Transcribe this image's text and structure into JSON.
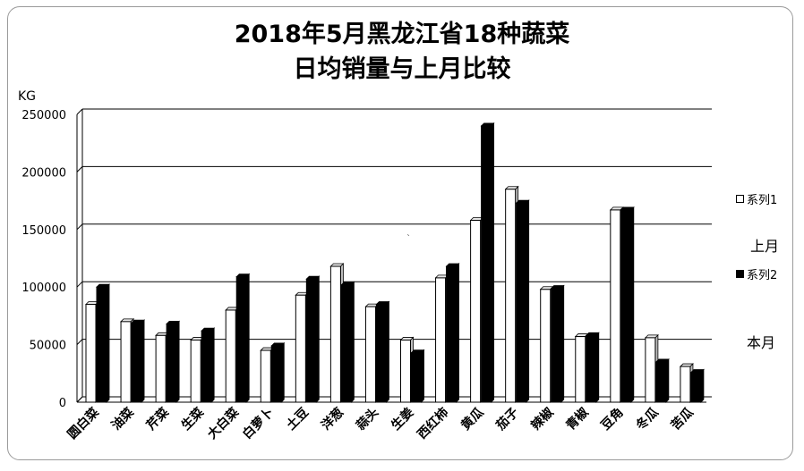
{
  "chart_data": {
    "type": "bar",
    "title_line1": "2018年5月黑龙江省18种蔬菜",
    "title_line2": "日均销量与上月比较",
    "ylabel": "KG",
    "ylim": [
      0,
      250000
    ],
    "yticks": [
      "0",
      "50000",
      "100000",
      "150000",
      "200000",
      "250000"
    ],
    "grid": true,
    "legend_position": "right",
    "categories": [
      "圆白菜",
      "油菜",
      "芹菜",
      "生菜",
      "大白菜",
      "白萝卜",
      "土豆",
      "洋葱",
      "蒜头",
      "生姜",
      "西红柿",
      "黄瓜",
      "茄子",
      "辣椒",
      "青椒",
      "豆角",
      "冬瓜",
      "苦瓜"
    ],
    "series": [
      {
        "name": "系列1",
        "color": "#ffffff",
        "values": [
          85000,
          70000,
          58000,
          54000,
          80000,
          45000,
          93000,
          118000,
          83000,
          54000,
          108000,
          158000,
          185000,
          98000,
          57000,
          167000,
          56000,
          31000
        ]
      },
      {
        "name": "系列2",
        "color": "#000000",
        "values": [
          100000,
          69000,
          68000,
          62000,
          109000,
          49000,
          107000,
          102000,
          85000,
          43000,
          118000,
          240000,
          173000,
          99000,
          58000,
          167000,
          35000,
          26000
        ]
      }
    ],
    "side_labels": [
      "上月",
      "本月"
    ],
    "stray_mark": "`"
  }
}
